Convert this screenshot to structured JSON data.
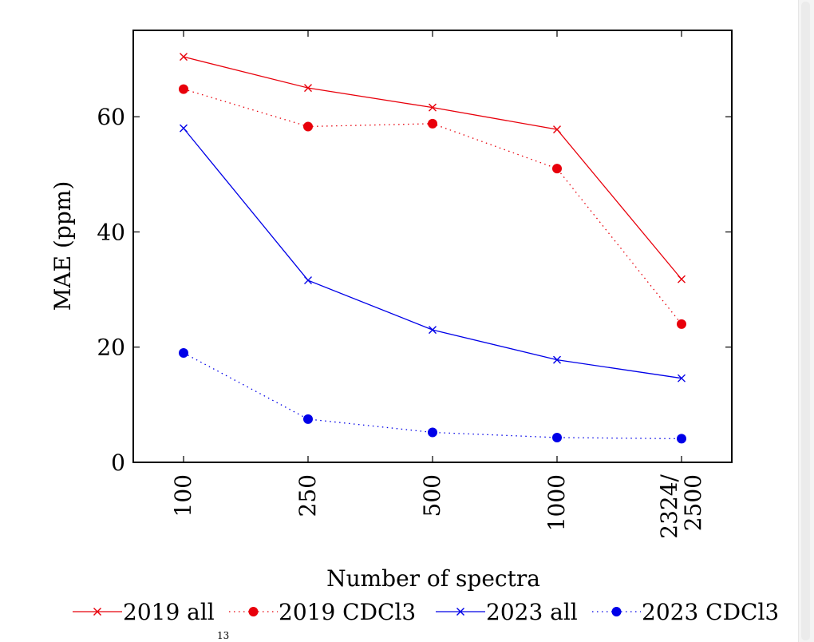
{
  "chart_data": {
    "type": "line",
    "title": "",
    "xlabel": "Number of spectra",
    "ylabel": "MAE (ppm)",
    "categories": [
      "100",
      "250",
      "500",
      "1000",
      "2324/\n2500"
    ],
    "ylim": [
      0,
      75
    ],
    "yticks": [
      0,
      20,
      40,
      60
    ],
    "grid": false,
    "legend_position": "bottom",
    "series": [
      {
        "name": "2019 all",
        "color": "#e8000b",
        "marker": "x",
        "line_style": "solid",
        "values": [
          70.4,
          65.0,
          61.6,
          57.8,
          31.8
        ]
      },
      {
        "name": "2019 CDCl3",
        "color": "#e8000b",
        "marker": "circle",
        "line_style": "dotted",
        "values": [
          64.8,
          58.3,
          58.8,
          51.0,
          24.0
        ]
      },
      {
        "name": "2023 all",
        "color": "#0000e8",
        "marker": "x",
        "line_style": "solid",
        "values": [
          58.0,
          31.6,
          23.0,
          17.8,
          14.6
        ]
      },
      {
        "name": "2023 CDCl3",
        "color": "#0000e8",
        "marker": "circle",
        "line_style": "dotted",
        "values": [
          19.0,
          7.5,
          5.2,
          4.3,
          4.1
        ]
      }
    ]
  },
  "page": {
    "footer_fragment": "13"
  }
}
